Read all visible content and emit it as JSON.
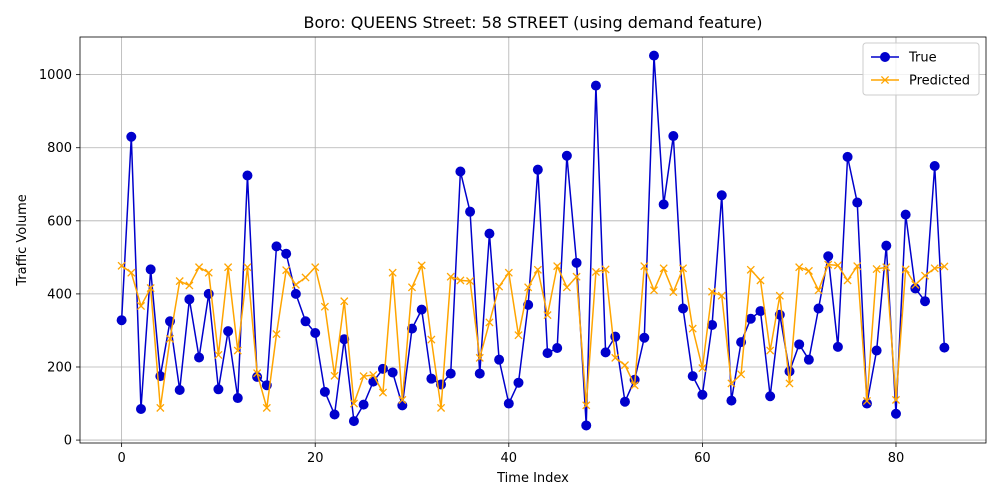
{
  "chart_data": {
    "type": "line",
    "title": "Boro: QUEENS Street: 58 STREET (using demand feature)",
    "xlabel": "Time Index",
    "ylabel": "Traffic Volume",
    "xlim": [
      -4.3,
      89.3
    ],
    "ylim": [
      -8,
      1103
    ],
    "xticks": [
      0,
      20,
      40,
      60,
      80
    ],
    "yticks": [
      0,
      200,
      400,
      600,
      800,
      1000
    ],
    "grid": true,
    "legend_position": "upper right",
    "series": [
      {
        "name": "True",
        "color": "#0000cc",
        "marker": "circle",
        "values": [
          328,
          830,
          85,
          467,
          175,
          325,
          137,
          385,
          226,
          400,
          139,
          298,
          115,
          724,
          173,
          150,
          530,
          510,
          400,
          325,
          293,
          132,
          70,
          276,
          52,
          97,
          160,
          195,
          185,
          95,
          305,
          357,
          168,
          152,
          182,
          735,
          625,
          182,
          565,
          220,
          100,
          157,
          370,
          740,
          238,
          252,
          778,
          485,
          40,
          970,
          240,
          283,
          105,
          165,
          280,
          1052,
          645,
          832,
          360,
          175,
          124,
          315,
          670,
          108,
          268,
          332,
          353,
          120,
          343,
          188,
          262,
          220,
          360,
          503,
          255,
          775,
          650,
          100,
          245,
          532,
          72,
          617,
          415,
          380,
          750,
          253
        ]
      },
      {
        "name": "Predicted",
        "color": "#ffa500",
        "marker": "x",
        "values": [
          477,
          458,
          367,
          416,
          88,
          277,
          435,
          423,
          473,
          458,
          233,
          473,
          245,
          473,
          183,
          88,
          290,
          465,
          425,
          445,
          473,
          365,
          176,
          380,
          100,
          175,
          178,
          130,
          458,
          110,
          418,
          478,
          275,
          88,
          447,
          437,
          435,
          225,
          322,
          420,
          458,
          287,
          418,
          466,
          342,
          476,
          418,
          447,
          95,
          460,
          467,
          225,
          205,
          150,
          476,
          410,
          470,
          405,
          470,
          305,
          197,
          406,
          395,
          155,
          180,
          466,
          437,
          245,
          395,
          155,
          473,
          463,
          410,
          480,
          478,
          437,
          476,
          107,
          468,
          473,
          110,
          467,
          425,
          450,
          470,
          475
        ]
      }
    ]
  }
}
